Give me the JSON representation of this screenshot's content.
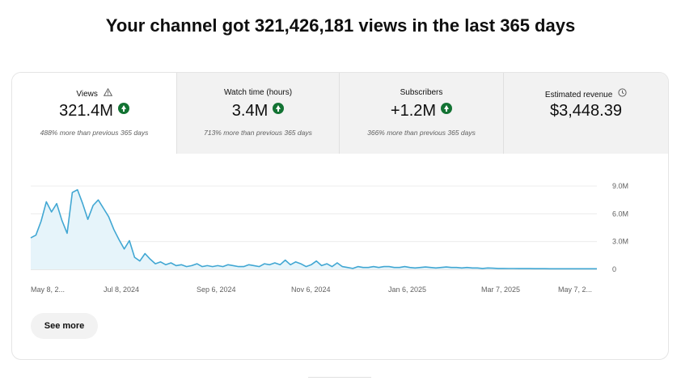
{
  "headline": "Your channel got 321,426,181 views in the last 365 days",
  "tabs": [
    {
      "label": "Views",
      "value": "321.4M",
      "sub": "488% more than previous 365 days",
      "icon": "warning-icon"
    },
    {
      "label": "Watch time (hours)",
      "value": "3.4M",
      "sub": "713% more than previous 365 days"
    },
    {
      "label": "Subscribers",
      "value": "+1.2M",
      "sub": "366% more than previous 365 days"
    },
    {
      "label": "Estimated revenue",
      "value": "$3,448.39",
      "icon": "clock-icon"
    }
  ],
  "see_more": "See more",
  "colors": {
    "line": "#41a7d3",
    "fill": "#e6f4fa",
    "up": "#137333"
  },
  "chart_data": {
    "type": "area",
    "y_ticks": [
      "9.0M",
      "6.0M",
      "3.0M",
      "0"
    ],
    "x_ticks": [
      "May 8, 2...",
      "Jul 8, 2024",
      "Sep 6, 2024",
      "Nov 6, 2024",
      "Jan 6, 2025",
      "Mar 7, 2025",
      "May 7, 2..."
    ],
    "ylim": [
      0,
      9000000
    ],
    "series": [
      {
        "values": [
          3400000,
          3700000,
          5200000,
          7300000,
          6200000,
          7100000,
          5300000,
          3900000,
          8300000,
          8600000,
          7100000,
          5400000,
          6900000,
          7500000,
          6600000,
          5700000,
          4300000,
          3200000,
          2200000,
          3100000,
          1300000,
          900000,
          1700000,
          1100000,
          600000,
          800000,
          500000,
          700000,
          400000,
          500000,
          300000,
          400000,
          600000,
          300000,
          400000,
          300000,
          400000,
          300000,
          500000,
          400000,
          300000,
          300000,
          500000,
          400000,
          300000,
          600000,
          500000,
          700000,
          500000,
          1000000,
          500000,
          800000,
          600000,
          300000,
          500000,
          900000,
          400000,
          600000,
          300000,
          700000,
          300000,
          200000,
          100000,
          300000,
          200000,
          200000,
          300000,
          200000,
          300000,
          300000,
          200000,
          200000,
          300000,
          200000,
          150000,
          200000,
          250000,
          200000,
          150000,
          200000,
          250000,
          200000,
          200000,
          150000,
          200000,
          150000,
          150000,
          100000,
          150000,
          120000,
          100000,
          100000,
          90000,
          90000,
          80000,
          80000,
          80000,
          70000,
          70000,
          70000,
          60000,
          60000,
          60000,
          60000,
          60000,
          60000,
          60000,
          60000,
          60000,
          60000
        ]
      }
    ]
  }
}
